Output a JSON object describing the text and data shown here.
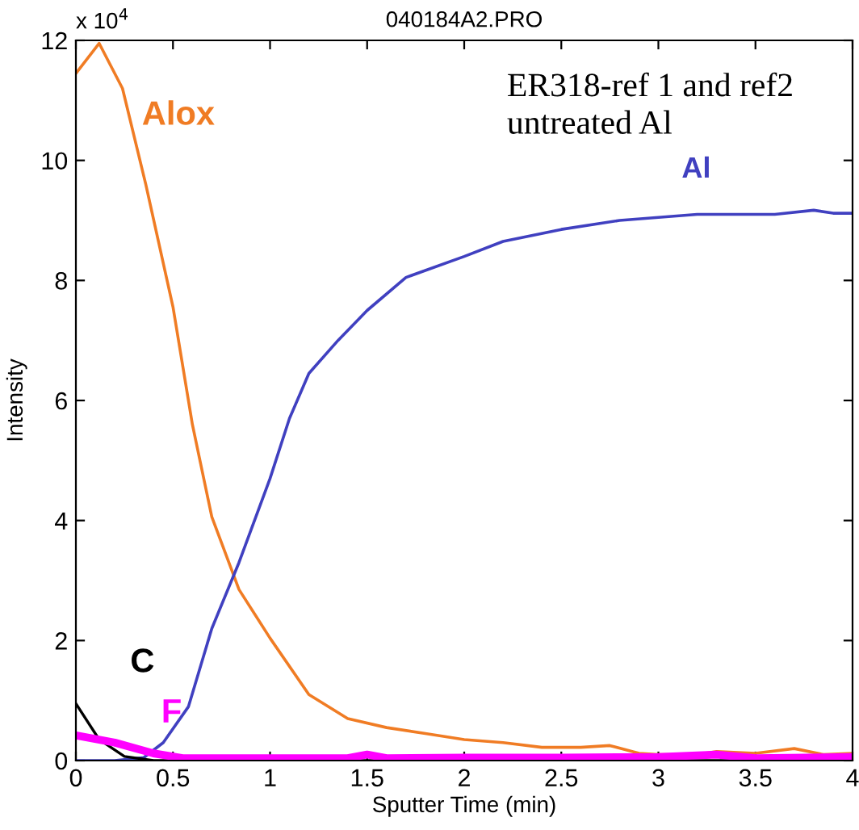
{
  "chart_data": {
    "type": "line",
    "title": "040184A2.PRO",
    "xlabel": "Sputter Time (min)",
    "ylabel": "Intensity",
    "annotations": [
      "x 10$^{4}$",
      "ER318-ref 1 and ref2\nuntreated Al"
    ],
    "xlim": [
      0,
      4
    ],
    "xticks": [
      0,
      0.5,
      1,
      1.5,
      2,
      2.5,
      3,
      3.5,
      4
    ],
    "ylim": [
      0,
      12
    ],
    "yticks": [
      0,
      2,
      4,
      6,
      8,
      10,
      12
    ],
    "grid": false,
    "legend": false,
    "series": [
      {
        "name": "Alox",
        "color": "#f07c24",
        "x": [
          0,
          0.12,
          0.24,
          0.36,
          0.5,
          0.6,
          0.7,
          0.84,
          1.0,
          1.2,
          1.4,
          1.6,
          1.8,
          2.0,
          2.2,
          2.4,
          2.6,
          2.75,
          2.9,
          3.0,
          3.2,
          3.3,
          3.5,
          3.7,
          3.85,
          4.0
        ],
        "values": [
          11.45,
          11.95,
          11.2,
          9.6,
          7.56,
          5.6,
          4.06,
          2.85,
          2.04,
          1.1,
          0.7,
          0.55,
          0.45,
          0.35,
          0.3,
          0.22,
          0.22,
          0.25,
          0.12,
          0.1,
          0.1,
          0.15,
          0.12,
          0.2,
          0.1,
          0.12
        ]
      },
      {
        "name": "Al",
        "color": "#4040c0",
        "x": [
          0,
          0.2,
          0.35,
          0.45,
          0.58,
          0.7,
          0.84,
          1.0,
          1.1,
          1.2,
          1.35,
          1.5,
          1.7,
          2.0,
          2.2,
          2.5,
          2.8,
          3.2,
          3.6,
          3.8,
          3.9,
          4.0
        ],
        "values": [
          0,
          0,
          0.05,
          0.3,
          0.9,
          2.2,
          3.3,
          4.7,
          5.7,
          6.45,
          7.0,
          7.5,
          8.05,
          8.4,
          8.65,
          8.85,
          9.0,
          9.1,
          9.1,
          9.17,
          9.12,
          9.12
        ]
      },
      {
        "name": "C",
        "color": "#000000",
        "x": [
          0,
          0.12,
          0.25,
          0.4,
          0.6,
          1.0,
          1.5,
          2.0,
          2.5,
          3.0,
          3.5,
          4.0
        ],
        "values": [
          0.95,
          0.35,
          0.07,
          0.0,
          0.0,
          0.0,
          0.0,
          0.0,
          0.0,
          0.0,
          0.0,
          0.02
        ]
      },
      {
        "name": "F",
        "color": "#ff00ff",
        "x": [
          0,
          0.2,
          0.4,
          0.55,
          1.0,
          1.4,
          1.5,
          1.6,
          2.0,
          2.5,
          3.0,
          3.3,
          3.5,
          4.0
        ],
        "values": [
          0.42,
          0.3,
          0.12,
          0.04,
          0.04,
          0.04,
          0.1,
          0.04,
          0.05,
          0.05,
          0.06,
          0.1,
          0.04,
          0.06
        ]
      }
    ]
  }
}
